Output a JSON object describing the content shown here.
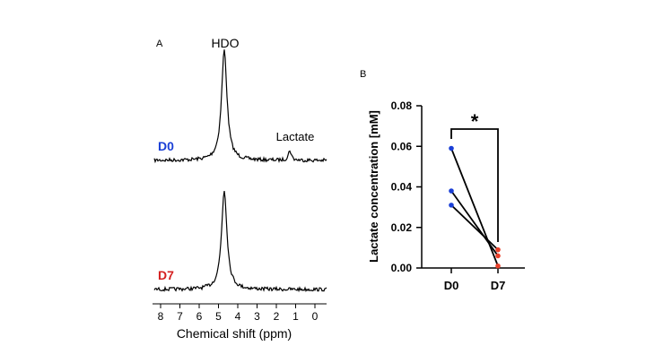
{
  "chart_data": [
    {
      "type": "line",
      "panel_label": "A",
      "title": "",
      "xlabel": "Chemical shift (ppm)",
      "ylabel": "",
      "xlim": [
        8.5,
        -0.5
      ],
      "x_reversed": true,
      "x_ticks": [
        8,
        7,
        6,
        5,
        4,
        3,
        2,
        1,
        0
      ],
      "annotations": [
        {
          "text": "HDO",
          "x": 4.7
        },
        {
          "text": "Lactate",
          "x": 1.3
        }
      ],
      "series": [
        {
          "name": "D0",
          "color": "#1a3fd6",
          "peaks": [
            {
              "center": 4.7,
              "height": 1.0,
              "width": 0.17
            },
            {
              "center": 1.3,
              "height": 0.09,
              "width": 0.09
            }
          ]
        },
        {
          "name": "D7",
          "color": "#d42020",
          "peaks": [
            {
              "center": 4.7,
              "height": 0.85,
              "width": 0.17
            }
          ]
        }
      ]
    },
    {
      "type": "scatter",
      "panel_label": "B",
      "title": "",
      "xlabel": "",
      "ylabel": "Lactate concentration [mM]",
      "categories": [
        "D0",
        "D7"
      ],
      "ylim": [
        0,
        0.08
      ],
      "y_ticks": [
        "0.00",
        "0.02",
        "0.04",
        "0.06",
        "0.08"
      ],
      "significance": "*",
      "category_colors": {
        "D0": "#1a3fd6",
        "D7": "#e8402a"
      },
      "pairs": [
        {
          "D0": 0.059,
          "D7": 0.001
        },
        {
          "D0": 0.038,
          "D7": 0.006
        },
        {
          "D0": 0.031,
          "D7": 0.009
        }
      ]
    }
  ]
}
